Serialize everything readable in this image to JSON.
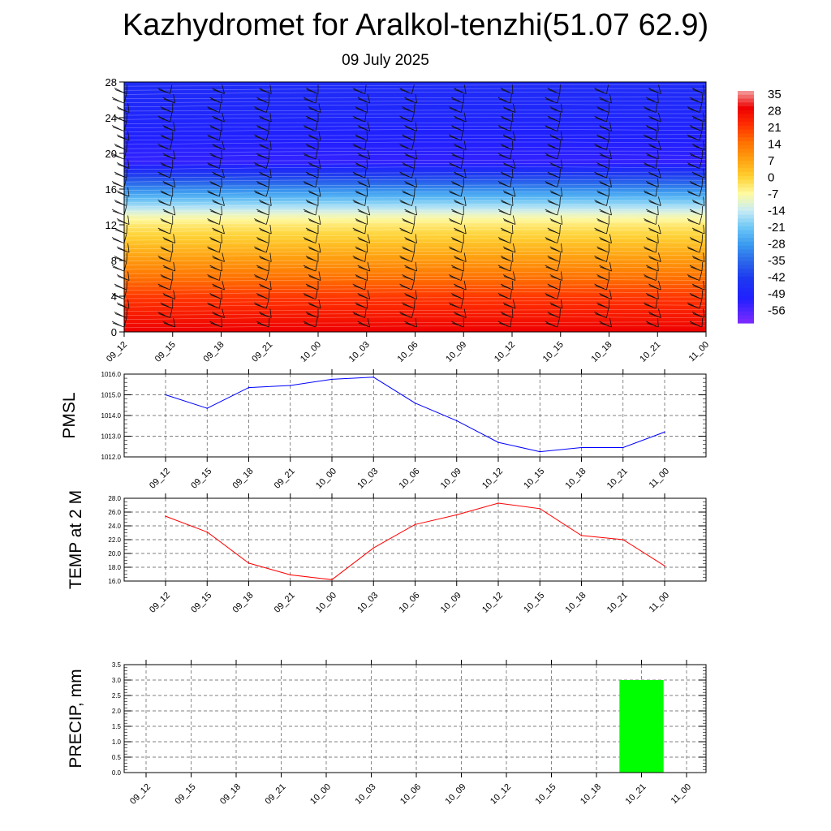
{
  "title": "Kazhydromet for Aralkol-tenzhi(51.07 62.9)",
  "subtitle": "09 July 2025",
  "colors": {
    "pmsl_line": "#0000ff",
    "temp_line": "#ff0000",
    "precip_bar": "#00ff00",
    "grid": "#555555"
  },
  "chart_data": [
    {
      "type": "heatmap",
      "name": "upper-air-temperature-section",
      "x_ticks": [
        "09_12",
        "09_15",
        "09_18",
        "09_21",
        "10_00",
        "10_03",
        "10_06",
        "10_09",
        "10_12",
        "10_15",
        "10_18",
        "10_21",
        "11_00"
      ],
      "y_ticks": [
        0,
        4,
        8,
        12,
        16,
        20,
        24,
        28
      ],
      "ylim": [
        0,
        28
      ],
      "colorbar": {
        "labels": [
          "35",
          "28",
          "21",
          "14",
          "7",
          "0",
          "-7",
          "-14",
          "-21",
          "-28",
          "-35",
          "-42",
          "-49",
          "-56"
        ],
        "stops": [
          {
            "value": -60,
            "color": "#7f2bff"
          },
          {
            "value": -50,
            "color": "#2020ff"
          },
          {
            "value": -42,
            "color": "#1d38f0"
          },
          {
            "value": -35,
            "color": "#2a66ea"
          },
          {
            "value": -28,
            "color": "#3a9af0"
          },
          {
            "value": -21,
            "color": "#6cc6f5"
          },
          {
            "value": -14,
            "color": "#c8ecf5"
          },
          {
            "value": -7,
            "color": "#fffaa0"
          },
          {
            "value": 0,
            "color": "#ffd030"
          },
          {
            "value": 7,
            "color": "#ffa010"
          },
          {
            "value": 14,
            "color": "#ff7000"
          },
          {
            "value": 21,
            "color": "#ff3000"
          },
          {
            "value": 28,
            "color": "#ee0000"
          },
          {
            "value": 35,
            "color": "#f4a0a0"
          }
        ]
      },
      "temperature_profile": [
        {
          "height": 0,
          "temp": 28
        },
        {
          "height": 4,
          "temp": 20
        },
        {
          "height": 8,
          "temp": 8
        },
        {
          "height": 12,
          "temp": -4
        },
        {
          "height": 13,
          "temp": -9
        },
        {
          "height": 16,
          "temp": -30
        },
        {
          "height": 19,
          "temp": -52
        },
        {
          "height": 24,
          "temp": -48
        },
        {
          "height": 28,
          "temp": -46
        }
      ],
      "grid": false
    },
    {
      "type": "line",
      "name": "pmsl",
      "ylabel": "PMSL",
      "categories": [
        "09_12",
        "09_15",
        "09_18",
        "09_21",
        "10_00",
        "10_03",
        "10_06",
        "10_09",
        "10_12",
        "10_15",
        "10_18",
        "10_21",
        "11_00"
      ],
      "values": [
        1015.0,
        1014.35,
        1015.35,
        1015.45,
        1015.75,
        1015.85,
        1014.6,
        1013.75,
        1012.7,
        1012.25,
        1012.45,
        1012.45,
        1013.2
      ],
      "ylim": [
        1012.0,
        1016.0
      ],
      "y_ticks": [
        "1012.0",
        "1013.0",
        "1014.0",
        "1015.0",
        "1016.0"
      ],
      "grid": true
    },
    {
      "type": "line",
      "name": "temp-2m",
      "ylabel": "TEMP at 2 M",
      "categories": [
        "09_12",
        "09_15",
        "09_18",
        "09_21",
        "10_00",
        "10_03",
        "10_06",
        "10_09",
        "10_12",
        "10_15",
        "10_18",
        "10_21",
        "11_00"
      ],
      "values": [
        25.4,
        23.1,
        18.6,
        16.9,
        16.2,
        20.8,
        24.2,
        25.6,
        27.3,
        26.5,
        22.6,
        22.0,
        18.2
      ],
      "ylim": [
        16.0,
        28.0
      ],
      "y_ticks": [
        "16.0",
        "18.0",
        "20.0",
        "22.0",
        "24.0",
        "26.0",
        "28.0"
      ],
      "grid": true
    },
    {
      "type": "bar",
      "name": "precip",
      "ylabel": "PRECIP, mm",
      "categories": [
        "09_12",
        "09_15",
        "09_18",
        "09_21",
        "10_00",
        "10_03",
        "10_06",
        "10_09",
        "10_12",
        "10_15",
        "10_18",
        "10_21",
        "11_00"
      ],
      "values": [
        0,
        0,
        0,
        0,
        0,
        0,
        0,
        0,
        0,
        0,
        0,
        3.0,
        0
      ],
      "ylim": [
        0.0,
        3.5
      ],
      "y_ticks": [
        "0.0",
        "0.5",
        "1.0",
        "1.5",
        "2.0",
        "2.5",
        "3.0",
        "3.5"
      ],
      "grid": true
    }
  ]
}
